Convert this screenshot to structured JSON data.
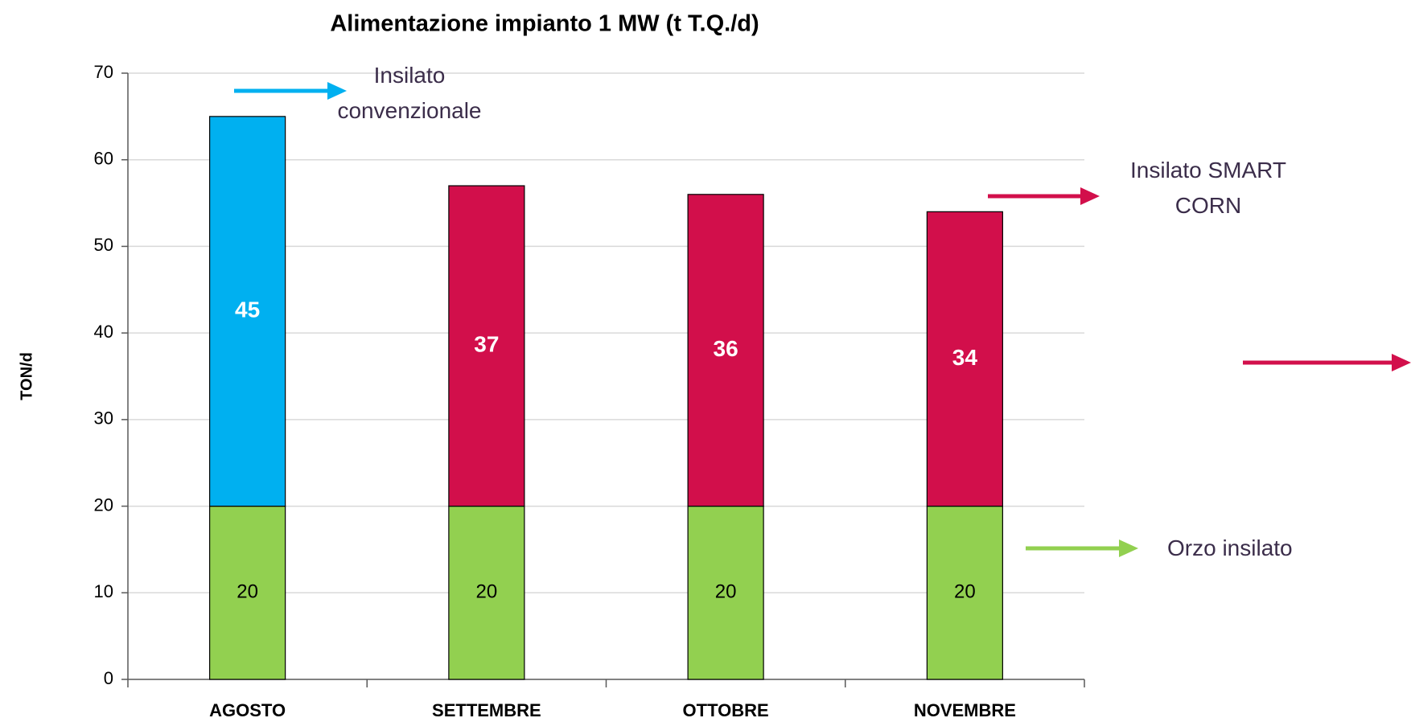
{
  "chart_data": {
    "type": "stacked_bar",
    "title": "Alimentazione impianto 1 MW (t T.Q./d)",
    "y_label": "TON/d",
    "categories": [
      "AGOSTO",
      "SETTEMBRE",
      "OTTOBRE",
      "NOVEMBRE"
    ],
    "series": [
      {
        "name": "Orzo insilato",
        "color": "#92d050",
        "values": [
          20,
          20,
          20,
          20
        ]
      },
      {
        "name": "Insilato convenzionale",
        "color": "#00b0f0",
        "values": [
          45,
          null,
          null,
          null
        ]
      },
      {
        "name": "Insilato SMART CORN",
        "color": "#d20f4b",
        "values": [
          null,
          37,
          36,
          34
        ]
      }
    ],
    "ylim": [
      0,
      70
    ],
    "yticks": [
      0,
      10,
      20,
      30,
      40,
      50,
      60,
      70
    ],
    "grid": true
  }
}
